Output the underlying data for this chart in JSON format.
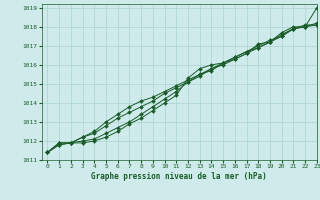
{
  "title": "Graphe pression niveau de la mer (hPa)",
  "bg_color": "#ceeaea",
  "grid_color": "#a8d4ce",
  "line_color": "#1a5c2a",
  "xlim": [
    -0.5,
    23
  ],
  "ylim": [
    1011,
    1019.2
  ],
  "yticks": [
    1011,
    1012,
    1013,
    1014,
    1015,
    1016,
    1017,
    1018,
    1019
  ],
  "xticks": [
    0,
    1,
    2,
    3,
    4,
    5,
    6,
    7,
    8,
    9,
    10,
    11,
    12,
    13,
    14,
    15,
    16,
    17,
    18,
    19,
    20,
    21,
    22,
    23
  ],
  "series": [
    [
      1011.4,
      1011.8,
      1011.9,
      1011.9,
      1012.0,
      1012.2,
      1012.5,
      1012.9,
      1013.2,
      1013.6,
      1014.0,
      1014.4,
      1015.3,
      1015.8,
      1016.0,
      1016.1,
      1016.3,
      1016.6,
      1017.1,
      1017.2,
      1017.6,
      1017.9,
      1018.0,
      1019.0
    ],
    [
      1011.4,
      1011.8,
      1011.9,
      1012.0,
      1012.1,
      1012.4,
      1012.7,
      1013.0,
      1013.4,
      1013.8,
      1014.2,
      1014.6,
      1015.1,
      1015.4,
      1015.8,
      1016.0,
      1016.3,
      1016.6,
      1016.9,
      1017.2,
      1017.7,
      1018.0,
      1018.0,
      1018.2
    ],
    [
      1011.4,
      1011.9,
      1011.9,
      1012.2,
      1012.4,
      1012.8,
      1013.2,
      1013.5,
      1013.8,
      1014.1,
      1014.5,
      1014.8,
      1015.1,
      1015.5,
      1015.7,
      1016.1,
      1016.4,
      1016.7,
      1016.9,
      1017.2,
      1017.5,
      1017.9,
      1018.0,
      1018.1
    ],
    [
      1011.4,
      1011.9,
      1011.9,
      1012.2,
      1012.5,
      1013.0,
      1013.4,
      1013.8,
      1014.1,
      1014.3,
      1014.6,
      1014.9,
      1015.2,
      1015.5,
      1015.8,
      1016.1,
      1016.4,
      1016.7,
      1017.0,
      1017.3,
      1017.5,
      1017.9,
      1018.1,
      1018.1
    ]
  ]
}
